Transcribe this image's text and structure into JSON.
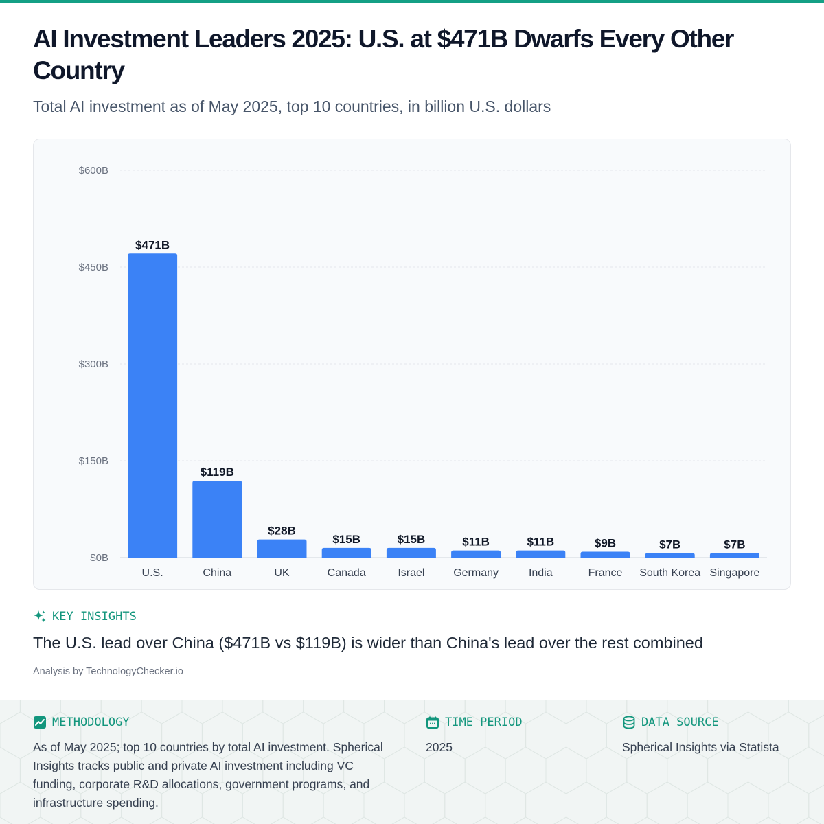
{
  "header": {
    "title": "AI Investment Leaders 2025: U.S. at $471B Dwarfs Every Other Country",
    "subtitle": "Total AI investment as of May 2025, top 10 countries, in billion U.S. dollars"
  },
  "chart_data": {
    "type": "bar",
    "title": "",
    "xlabel": "",
    "ylabel": "",
    "categories": [
      "U.S.",
      "China",
      "UK",
      "Canada",
      "Israel",
      "Germany",
      "India",
      "France",
      "South Korea",
      "Singapore"
    ],
    "values": [
      471,
      119,
      28,
      15,
      15,
      11,
      11,
      9,
      7,
      7
    ],
    "data_labels": [
      "$471B",
      "$119B",
      "$28B",
      "$15B",
      "$15B",
      "$11B",
      "$11B",
      "$9B",
      "$7B",
      "$7B"
    ],
    "ylim": [
      0,
      600
    ],
    "yticks": [
      0,
      150,
      300,
      450,
      600
    ],
    "ytick_labels": [
      "$0B",
      "$150B",
      "$300B",
      "$450B",
      "$600B"
    ],
    "grid": true,
    "bar_color": "#3b82f6"
  },
  "insights": {
    "label": "KEY INSIGHTS",
    "icon": "sparkle-icon",
    "text": "The U.S. lead over China ($471B vs $119B) is wider than China's lead over the rest combined",
    "credit": "Analysis by TechnologyChecker.io"
  },
  "footer": {
    "methodology": {
      "icon": "trend-chart-icon",
      "label": "METHODOLOGY",
      "text": "As of May 2025; top 10 countries by total AI investment. Spherical Insights tracks public and private AI investment including VC funding, corporate R&D allocations, government programs, and infrastructure spending."
    },
    "time_period": {
      "icon": "calendar-icon",
      "label": "TIME PERIOD",
      "text": "2025"
    },
    "data_source": {
      "icon": "database-icon",
      "label": "DATA SOURCE",
      "text": "Spherical Insights via Statista"
    }
  },
  "colors": {
    "accent": "#14a085",
    "bar": "#3b82f6"
  }
}
